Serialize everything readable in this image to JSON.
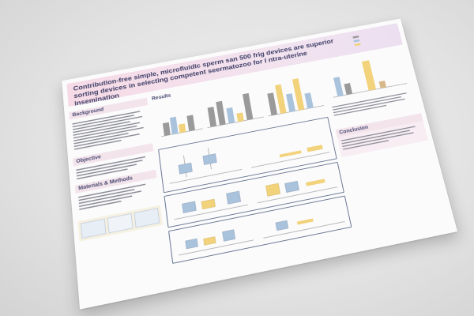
{
  "poster": {
    "title": "Contribution-free simple, microfluidic sperm san 500 frig devices are superior sorting devices in selecting competent seermatozoo for I ntra-uterine insemination",
    "subtitle": "",
    "legend": [
      {
        "label": "",
        "color": "#9a9a9a"
      },
      {
        "label": "",
        "color": "#a9c3dd"
      },
      {
        "label": "",
        "color": "#f2d27a"
      },
      {
        "label": "",
        "color": "#d9b98a"
      }
    ],
    "sections": {
      "background": {
        "heading": "Background",
        "body": ""
      },
      "objective": {
        "heading": "Objective",
        "body": ""
      },
      "methods": {
        "heading": "Materials & Methods",
        "body": ""
      },
      "results": {
        "heading": "Results"
      },
      "conclusion": {
        "heading": "Conclusion",
        "body": ""
      }
    },
    "colors": {
      "band": "#f3e4ec",
      "grey": "#9a9a9a",
      "blue": "#a9c3dd",
      "yellow": "#f2d27a",
      "panel_border": "#6c7a96"
    }
  }
}
